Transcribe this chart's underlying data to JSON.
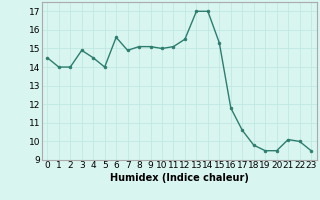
{
  "x": [
    0,
    1,
    2,
    3,
    4,
    5,
    6,
    7,
    8,
    9,
    10,
    11,
    12,
    13,
    14,
    15,
    16,
    17,
    18,
    19,
    20,
    21,
    22,
    23
  ],
  "y": [
    14.5,
    14.0,
    14.0,
    14.9,
    14.5,
    14.0,
    15.6,
    14.9,
    15.1,
    15.1,
    15.0,
    15.1,
    15.5,
    17.0,
    17.0,
    15.3,
    11.8,
    10.6,
    9.8,
    9.5,
    9.5,
    10.1,
    10.0,
    9.5
  ],
  "xlabel": "Humidex (Indice chaleur)",
  "ylim": [
    9,
    17.5
  ],
  "xlim": [
    -0.5,
    23.5
  ],
  "yticks": [
    9,
    10,
    11,
    12,
    13,
    14,
    15,
    16,
    17
  ],
  "xticks": [
    0,
    1,
    2,
    3,
    4,
    5,
    6,
    7,
    8,
    9,
    10,
    11,
    12,
    13,
    14,
    15,
    16,
    17,
    18,
    19,
    20,
    21,
    22,
    23
  ],
  "line_color": "#2d7d6e",
  "marker_color": "#2d7d6e",
  "bg_color": "#d8f5f0",
  "grid_color": "#c0e8e2",
  "xlabel_fontsize": 7,
  "tick_fontsize": 6.5
}
